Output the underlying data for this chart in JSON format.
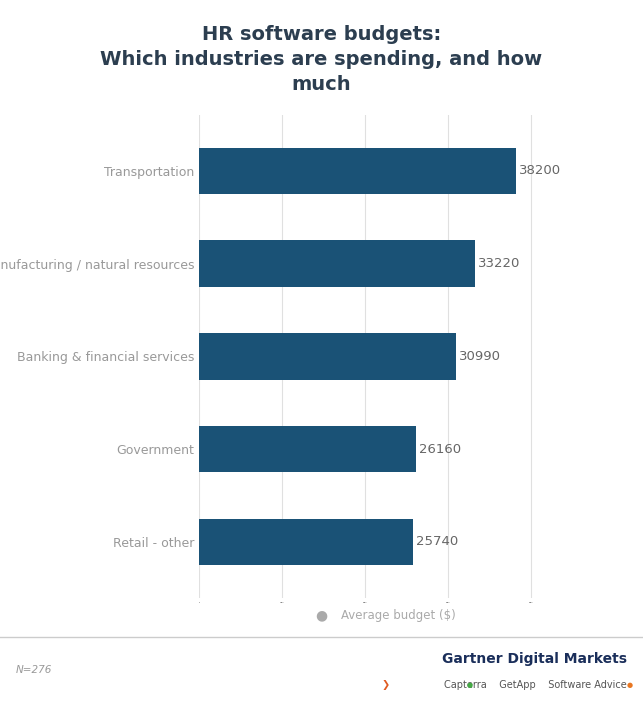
{
  "title": "HR software budgets:\nWhich industries are spending, and how\nmuch",
  "categories": [
    "Retail - other",
    "Government",
    "Banking & financial services",
    "Manufacturing / natural resources",
    "Transportation"
  ],
  "values": [
    25740,
    26160,
    30990,
    33220,
    38200
  ],
  "bar_color": "#1a5276",
  "value_color": "#666666",
  "label_color": "#999999",
  "title_color": "#2c3e50",
  "bg_color": "#ffffff",
  "legend_label": "Average budget ($)",
  "legend_dot_color": "#aaaaaa",
  "note": "N=276",
  "xlim": [
    0,
    45000
  ],
  "bar_height": 0.5,
  "value_fontsize": 9.5,
  "label_fontsize": 9,
  "title_fontsize": 14,
  "note_fontsize": 7.5
}
